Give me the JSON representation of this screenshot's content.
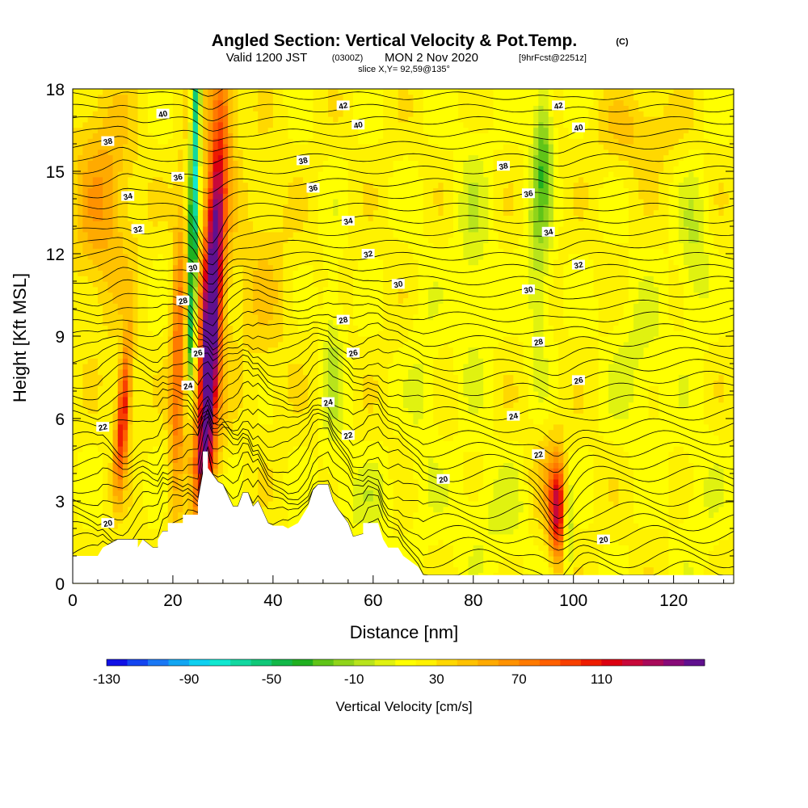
{
  "header": {
    "title": "Angled Section: Vertical Velocity & Pot.Temp.",
    "title_mark": "(C)",
    "valid_prefix": "Valid 1200 JST",
    "valid_utc": "(0300Z)",
    "valid_date": "MON 2 Nov 2020",
    "forecast": "[9hrFcst@2251z]",
    "slice": "slice X,Y= 92,59@135°"
  },
  "chart_data": {
    "type": "heatmap",
    "title": "Angled Section: Vertical Velocity & Pot.Temp.",
    "xlabel": "Distance [nm]",
    "ylabel": "Height [Kft MSL]",
    "xlim": [
      0,
      132
    ],
    "ylim": [
      0,
      18
    ],
    "x_ticks": [
      0,
      20,
      40,
      60,
      80,
      100,
      120
    ],
    "y_ticks": [
      0,
      3,
      6,
      9,
      12,
      15,
      18
    ],
    "colorbar": {
      "label": "Vertical Velocity [cm/s]",
      "tick_labels": [
        "-130",
        "-90",
        "-50",
        "-10",
        "30",
        "70",
        "110"
      ],
      "min": -140,
      "max": 150,
      "step": 10,
      "colors": [
        "#1010e6",
        "#1445f0",
        "#1a78f5",
        "#12a6f2",
        "#0ed0f0",
        "#10e8d0",
        "#12d8a0",
        "#10c878",
        "#12b848",
        "#20b020",
        "#60c418",
        "#90d41a",
        "#b8e41c",
        "#e0f210",
        "#ffff00",
        "#fff200",
        "#ffd800",
        "#ffc200",
        "#ffaa00",
        "#ff9200",
        "#ff7a00",
        "#ff6000",
        "#f84000",
        "#ee1c00",
        "#dc0010",
        "#c8083a",
        "#a80a5a",
        "#880a78",
        "#60108e"
      ]
    },
    "contours": {
      "variable": "Potential Temperature",
      "labels": [
        {
          "text": "20",
          "x": 7,
          "y": 2.2
        },
        {
          "text": "22",
          "x": 6,
          "y": 5.7
        },
        {
          "text": "24",
          "x": 23,
          "y": 7.2
        },
        {
          "text": "26",
          "x": 25,
          "y": 8.4
        },
        {
          "text": "28",
          "x": 22,
          "y": 10.3
        },
        {
          "text": "30",
          "x": 24,
          "y": 11.5
        },
        {
          "text": "32",
          "x": 13,
          "y": 12.9
        },
        {
          "text": "34",
          "x": 11,
          "y": 14.1
        },
        {
          "text": "36",
          "x": 21,
          "y": 14.8
        },
        {
          "text": "38",
          "x": 7,
          "y": 16.1
        },
        {
          "text": "40",
          "x": 18,
          "y": 17.1
        },
        {
          "text": "20",
          "x": 74,
          "y": 3.8
        },
        {
          "text": "22",
          "x": 55,
          "y": 5.4
        },
        {
          "text": "24",
          "x": 51,
          "y": 6.6
        },
        {
          "text": "26",
          "x": 56,
          "y": 8.4
        },
        {
          "text": "28",
          "x": 54,
          "y": 9.6
        },
        {
          "text": "30",
          "x": 65,
          "y": 10.9
        },
        {
          "text": "32",
          "x": 59,
          "y": 12.0
        },
        {
          "text": "34",
          "x": 55,
          "y": 13.2
        },
        {
          "text": "36",
          "x": 48,
          "y": 14.4
        },
        {
          "text": "38",
          "x": 46,
          "y": 15.4
        },
        {
          "text": "40",
          "x": 57,
          "y": 16.7
        },
        {
          "text": "42",
          "x": 54,
          "y": 17.4
        },
        {
          "text": "22",
          "x": 93,
          "y": 4.7
        },
        {
          "text": "24",
          "x": 88,
          "y": 6.1
        },
        {
          "text": "26",
          "x": 101,
          "y": 7.4
        },
        {
          "text": "28",
          "x": 93,
          "y": 8.8
        },
        {
          "text": "30",
          "x": 91,
          "y": 10.7
        },
        {
          "text": "32",
          "x": 101,
          "y": 11.6
        },
        {
          "text": "34",
          "x": 95,
          "y": 12.8
        },
        {
          "text": "36",
          "x": 91,
          "y": 14.2
        },
        {
          "text": "38",
          "x": 86,
          "y": 15.2
        },
        {
          "text": "40",
          "x": 101,
          "y": 16.6
        },
        {
          "text": "42",
          "x": 97,
          "y": 17.4
        },
        {
          "text": "20",
          "x": 106,
          "y": 1.6
        }
      ]
    },
    "terrain_profile": [
      [
        0,
        1
      ],
      [
        5,
        1
      ],
      [
        6,
        1.3
      ],
      [
        9,
        1.6
      ],
      [
        13,
        1.6
      ],
      [
        13,
        1.3
      ],
      [
        14,
        1.6
      ],
      [
        16,
        1.3
      ],
      [
        17,
        1.3
      ],
      [
        17,
        1.6
      ],
      [
        18,
        1.9
      ],
      [
        19,
        1.9
      ],
      [
        19,
        2.2
      ],
      [
        22,
        2.2
      ],
      [
        22,
        2.5
      ],
      [
        25,
        2.5
      ],
      [
        25,
        3
      ],
      [
        26,
        4
      ],
      [
        26,
        4.8
      ],
      [
        27,
        4.8
      ],
      [
        27,
        4.2
      ],
      [
        29,
        3.7
      ],
      [
        30,
        3.6
      ],
      [
        31,
        3.2
      ],
      [
        32,
        2.8
      ],
      [
        33,
        2.8
      ],
      [
        34,
        3.3
      ],
      [
        35,
        3.3
      ],
      [
        36,
        2.8
      ],
      [
        37,
        3
      ],
      [
        38,
        2.6
      ],
      [
        39,
        2.2
      ],
      [
        40,
        2.1
      ],
      [
        42,
        2.1
      ],
      [
        43,
        2
      ],
      [
        45,
        2.2
      ],
      [
        47,
        2.8
      ],
      [
        48,
        3.4
      ],
      [
        49,
        3.6
      ],
      [
        51,
        3.6
      ],
      [
        52,
        3
      ],
      [
        53,
        2.7
      ],
      [
        55,
        2.2
      ],
      [
        56,
        1.7
      ],
      [
        58,
        1.8
      ],
      [
        58,
        2.2
      ],
      [
        61,
        2.2
      ],
      [
        62,
        1.6
      ],
      [
        63,
        1.3
      ],
      [
        65,
        1.3
      ],
      [
        66,
        1
      ],
      [
        69,
        0.6
      ],
      [
        70,
        0.3
      ],
      [
        75,
        0.3
      ],
      [
        132,
        0.3
      ]
    ],
    "updraft_cores": [
      {
        "x": 10,
        "y": 6,
        "value": 110
      },
      {
        "x": 27.5,
        "y": 9,
        "value": 150
      },
      {
        "x": 21,
        "y": 7,
        "value": 80
      },
      {
        "x": 97,
        "y": 2.5,
        "value": 100
      }
    ],
    "downdraft_cores": [
      {
        "x": 24,
        "y": 15.5,
        "value": -80
      },
      {
        "x": 99,
        "y": 2,
        "value": -40
      },
      {
        "x": 94,
        "y": 16,
        "value": -30
      },
      {
        "x": 52,
        "y": 8,
        "value": -20
      }
    ]
  }
}
